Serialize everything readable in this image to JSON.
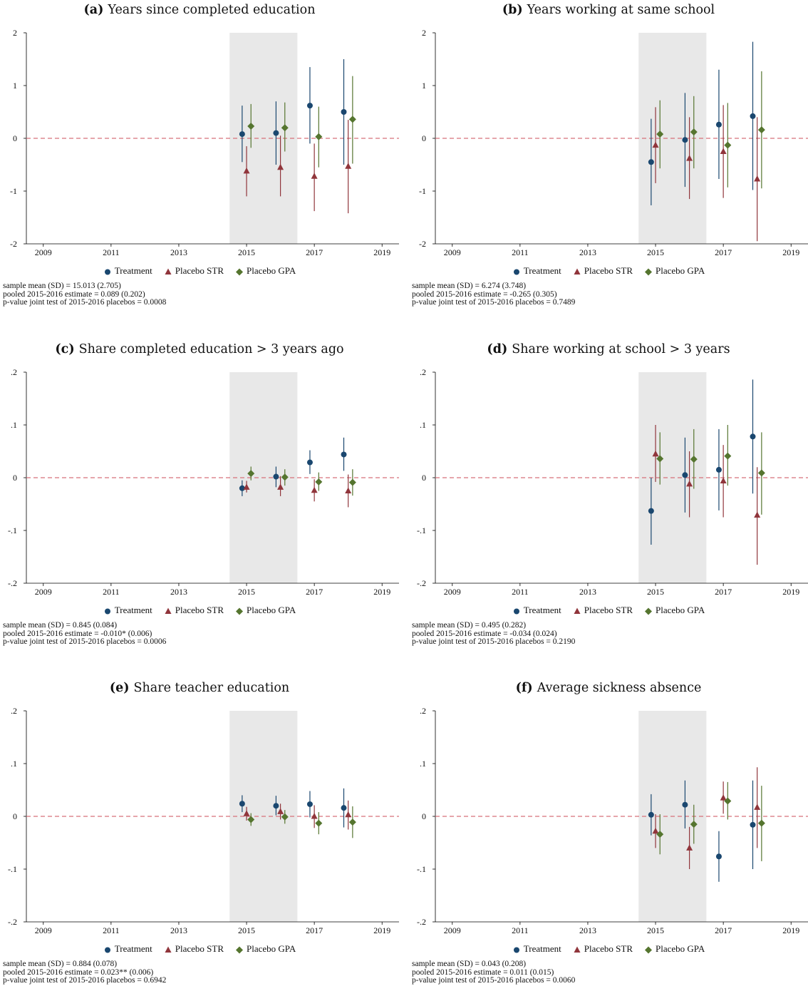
{
  "legend": {
    "treatment": "Treatment",
    "placebo_str": "Placebo STR",
    "placebo_gpa": "Placebo GPA"
  },
  "colors": {
    "treatment": "#1a476f",
    "placebo_str": "#90353b",
    "placebo_gpa": "#55752f",
    "zero_line": "#d6707a",
    "shade": "#e8e8e8"
  },
  "chart_data": [
    {
      "type": "scatter",
      "panel_label": "(a)",
      "title": "Years since completed education",
      "xlim": [
        2008.5,
        2019.5
      ],
      "ylim": [
        -2,
        2
      ],
      "xticks": [
        "2009",
        "2011",
        "2013",
        "2015",
        "2017",
        "2019"
      ],
      "yticks": [
        "-2",
        "-1",
        "0",
        "1",
        "2"
      ],
      "shaded_region": [
        2014.5,
        2016.5
      ],
      "series": [
        {
          "name": "Treatment",
          "x": [
            2015,
            2016,
            2017,
            2018
          ],
          "values": [
            0.08,
            0.1,
            0.62,
            0.5
          ],
          "ci_low": [
            -0.45,
            -0.5,
            -0.1,
            -0.5
          ],
          "ci_high": [
            0.62,
            0.7,
            1.35,
            1.5
          ]
        },
        {
          "name": "Placebo STR",
          "x": [
            2015,
            2016,
            2017,
            2018
          ],
          "values": [
            -0.62,
            -0.55,
            -0.72,
            -0.53
          ],
          "ci_low": [
            -1.1,
            -1.1,
            -1.38,
            -1.42
          ],
          "ci_high": [
            -0.15,
            0.05,
            -0.1,
            0.35
          ]
        },
        {
          "name": "Placebo GPA",
          "x": [
            2015,
            2016,
            2017,
            2018
          ],
          "values": [
            0.23,
            0.2,
            0.03,
            0.36
          ],
          "ci_low": [
            -0.18,
            -0.25,
            -0.55,
            -0.48
          ],
          "ci_high": [
            0.65,
            0.68,
            0.6,
            1.18
          ]
        }
      ],
      "notes": [
        "sample mean (SD) = 15.013 (2.705)",
        "pooled 2015-2016 estimate = 0.089 (0.202)",
        "p-value joint test of 2015-2016 placebos = 0.0008"
      ]
    },
    {
      "type": "scatter",
      "panel_label": "(b)",
      "title": "Years working at same school",
      "xlim": [
        2008.5,
        2019.5
      ],
      "ylim": [
        -2,
        2
      ],
      "xticks": [
        "2009",
        "2011",
        "2013",
        "2015",
        "2017",
        "2019"
      ],
      "yticks": [
        "-2",
        "-1",
        "0",
        "1",
        "2"
      ],
      "shaded_region": [
        2014.5,
        2016.5
      ],
      "series": [
        {
          "name": "Treatment",
          "x": [
            2015,
            2016,
            2017,
            2018
          ],
          "values": [
            -0.45,
            -0.03,
            0.26,
            0.42
          ],
          "ci_low": [
            -1.27,
            -0.92,
            -0.77,
            -0.98
          ],
          "ci_high": [
            0.37,
            0.86,
            1.3,
            1.83
          ]
        },
        {
          "name": "Placebo STR",
          "x": [
            2015,
            2016,
            2017,
            2018
          ],
          "values": [
            -0.13,
            -0.38,
            -0.25,
            -0.77
          ],
          "ci_low": [
            -0.85,
            -1.15,
            -1.13,
            -1.95
          ],
          "ci_high": [
            0.59,
            0.4,
            0.63,
            0.4
          ]
        },
        {
          "name": "Placebo GPA",
          "x": [
            2015,
            2016,
            2017,
            2018
          ],
          "values": [
            0.08,
            0.12,
            -0.13,
            0.16
          ],
          "ci_low": [
            -0.57,
            -0.57,
            -0.93,
            -0.95
          ],
          "ci_high": [
            0.72,
            0.8,
            0.67,
            1.27
          ]
        }
      ],
      "notes": [
        "sample mean (SD) = 6.274 (3.748)",
        "pooled 2015-2016 estimate = -0.265 (0.305)",
        "p-value joint test of 2015-2016 placebos = 0.7489"
      ]
    },
    {
      "type": "scatter",
      "panel_label": "(c)",
      "title": "Share completed education > 3 years ago",
      "xlim": [
        2008.5,
        2019.5
      ],
      "ylim": [
        -0.2,
        0.2
      ],
      "xticks": [
        "2009",
        "2011",
        "2013",
        "2015",
        "2017",
        "2019"
      ],
      "yticks": [
        "-.2",
        "-.1",
        "0",
        ".1",
        ".2"
      ],
      "shaded_region": [
        2014.5,
        2016.5
      ],
      "series": [
        {
          "name": "Treatment",
          "x": [
            2015,
            2016,
            2017,
            2018
          ],
          "values": [
            -0.02,
            0.002,
            0.029,
            0.044
          ],
          "ci_low": [
            -0.035,
            -0.018,
            0.007,
            0.013
          ],
          "ci_high": [
            -0.005,
            0.021,
            0.052,
            0.076
          ]
        },
        {
          "name": "Placebo STR",
          "x": [
            2015,
            2016,
            2017,
            2018
          ],
          "values": [
            -0.018,
            -0.018,
            -0.024,
            -0.025
          ],
          "ci_low": [
            -0.028,
            -0.035,
            -0.045,
            -0.056
          ],
          "ci_high": [
            -0.006,
            0.003,
            -0.003,
            0.006
          ]
        },
        {
          "name": "Placebo GPA",
          "x": [
            2015,
            2016,
            2017,
            2018
          ],
          "values": [
            0.008,
            0.001,
            -0.008,
            -0.009
          ],
          "ci_low": [
            -0.005,
            -0.015,
            -0.025,
            -0.034
          ],
          "ci_high": [
            0.021,
            0.016,
            0.01,
            0.016
          ]
        }
      ],
      "notes": [
        "sample mean (SD) = 0.845 (0.084)",
        "pooled 2015-2016 estimate = -0.010* (0.006)",
        "p-value joint test of 2015-2016 placebos = 0.0006"
      ]
    },
    {
      "type": "scatter",
      "panel_label": "(d)",
      "title": "Share working at school > 3 years",
      "xlim": [
        2008.5,
        2019.5
      ],
      "ylim": [
        -0.2,
        0.2
      ],
      "xticks": [
        "2009",
        "2011",
        "2013",
        "2015",
        "2017",
        "2019"
      ],
      "yticks": [
        "-.2",
        "-.1",
        "0",
        ".1",
        ".2"
      ],
      "shaded_region": [
        2014.5,
        2016.5
      ],
      "series": [
        {
          "name": "Treatment",
          "x": [
            2015,
            2016,
            2017,
            2018
          ],
          "values": [
            -0.063,
            0.005,
            0.015,
            0.078
          ],
          "ci_low": [
            -0.127,
            -0.066,
            -0.062,
            -0.03
          ],
          "ci_high": [
            0.0,
            0.076,
            0.092,
            0.186
          ]
        },
        {
          "name": "Placebo STR",
          "x": [
            2015,
            2016,
            2017,
            2018
          ],
          "values": [
            0.045,
            -0.012,
            -0.006,
            -0.071
          ],
          "ci_low": [
            -0.008,
            -0.075,
            -0.075,
            -0.165
          ],
          "ci_high": [
            0.1,
            0.05,
            0.062,
            0.02
          ]
        },
        {
          "name": "Placebo GPA",
          "x": [
            2015,
            2016,
            2017,
            2018
          ],
          "values": [
            0.036,
            0.035,
            0.041,
            0.009
          ],
          "ci_low": [
            -0.013,
            -0.021,
            -0.015,
            -0.07
          ],
          "ci_high": [
            0.086,
            0.092,
            0.1,
            0.086
          ]
        }
      ],
      "notes": [
        "sample mean (SD) = 0.495 (0.282)",
        "pooled 2015-2016 estimate = -0.034 (0.024)",
        "p-value joint test of 2015-2016 placebos = 0.2190"
      ]
    },
    {
      "type": "scatter",
      "panel_label": "(e)",
      "title": "Share teacher education",
      "xlim": [
        2008.5,
        2019.5
      ],
      "ylim": [
        -0.2,
        0.2
      ],
      "xticks": [
        "2009",
        "2011",
        "2013",
        "2015",
        "2017",
        "2019"
      ],
      "yticks": [
        "-.2",
        "-.1",
        "0",
        ".1",
        ".2"
      ],
      "shaded_region": [
        2014.5,
        2016.5
      ],
      "series": [
        {
          "name": "Treatment",
          "x": [
            2015,
            2016,
            2017,
            2018
          ],
          "values": [
            0.024,
            0.02,
            0.023,
            0.016
          ],
          "ci_low": [
            0.008,
            0.002,
            -0.002,
            -0.021
          ],
          "ci_high": [
            0.04,
            0.039,
            0.048,
            0.053
          ]
        },
        {
          "name": "Placebo STR",
          "x": [
            2015,
            2016,
            2017,
            2018
          ],
          "values": [
            0.005,
            0.009,
            0.0,
            0.003
          ],
          "ci_low": [
            -0.008,
            -0.006,
            -0.022,
            -0.025
          ],
          "ci_high": [
            0.018,
            0.024,
            0.021,
            0.03
          ]
        },
        {
          "name": "Placebo GPA",
          "x": [
            2015,
            2016,
            2017,
            2018
          ],
          "values": [
            -0.006,
            -0.001,
            -0.013,
            -0.011
          ],
          "ci_low": [
            -0.018,
            -0.014,
            -0.034,
            -0.041
          ],
          "ci_high": [
            0.006,
            0.012,
            0.008,
            0.019
          ]
        }
      ],
      "notes": [
        "sample mean (SD) = 0.884 (0.078)",
        "pooled 2015-2016 estimate = 0.023** (0.006)",
        "p-value joint test of 2015-2016 placebos = 0.6942"
      ]
    },
    {
      "type": "scatter",
      "panel_label": "(f)",
      "title": "Average sickness absence",
      "xlim": [
        2008.5,
        2019.5
      ],
      "ylim": [
        -0.2,
        0.2
      ],
      "xticks": [
        "2009",
        "2011",
        "2013",
        "2015",
        "2017",
        "2019"
      ],
      "yticks": [
        "-.2",
        "-.1",
        "0",
        ".1",
        ".2"
      ],
      "shaded_region": [
        2014.5,
        2016.5
      ],
      "series": [
        {
          "name": "Treatment",
          "x": [
            2015,
            2016,
            2017,
            2018
          ],
          "values": [
            0.003,
            0.022,
            -0.076,
            -0.016
          ],
          "ci_low": [
            -0.036,
            -0.023,
            -0.124,
            -0.1
          ],
          "ci_high": [
            0.042,
            0.068,
            -0.028,
            0.068
          ]
        },
        {
          "name": "Placebo STR",
          "x": [
            2015,
            2016,
            2017,
            2018
          ],
          "values": [
            -0.028,
            -0.06,
            0.035,
            0.017
          ],
          "ci_low": [
            -0.06,
            -0.1,
            0.005,
            -0.06
          ],
          "ci_high": [
            0.004,
            -0.02,
            0.066,
            0.093
          ]
        },
        {
          "name": "Placebo GPA",
          "x": [
            2015,
            2016,
            2017,
            2018
          ],
          "values": [
            -0.034,
            -0.015,
            0.029,
            -0.013
          ],
          "ci_low": [
            -0.072,
            -0.052,
            -0.006,
            -0.085
          ],
          "ci_high": [
            0.004,
            0.022,
            0.065,
            0.058
          ]
        }
      ],
      "notes": [
        "sample mean (SD) = 0.043 (0.208)",
        "pooled 2015-2016 estimate = 0.011 (0.015)",
        "p-value joint test of 2015-2016 placebos = 0.0060"
      ]
    }
  ]
}
